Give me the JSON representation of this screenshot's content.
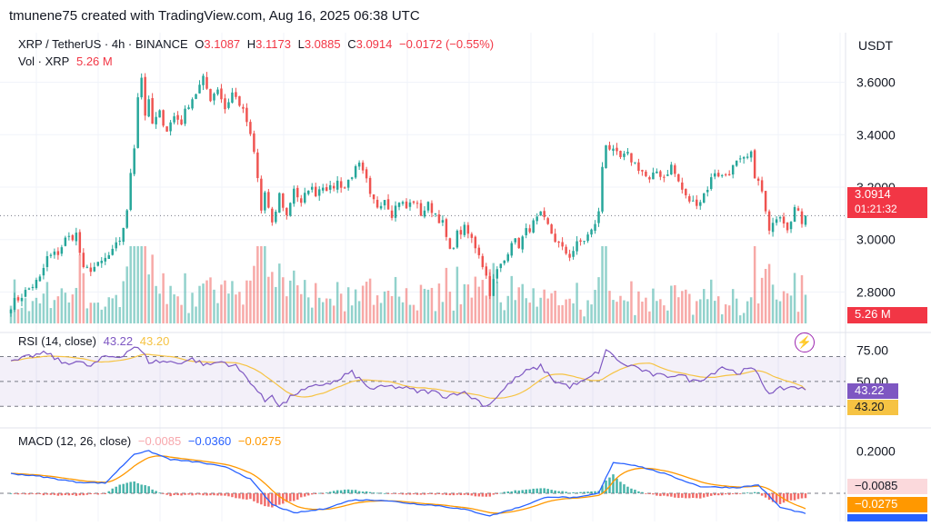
{
  "header": {
    "text": "tmunene75 created with TradingView.com, Aug 16, 2025 06:38 UTC"
  },
  "legend": {
    "symbol": "XRP / TetherUS · 4h · BINANCE",
    "o_label": "O",
    "o": "3.1087",
    "h_label": "H",
    "h": "3.1173",
    "l_label": "L",
    "l": "3.0885",
    "c_label": "C",
    "c": "3.0914",
    "change": "−0.0172 (−0.55%)",
    "vol_label": "Vol · XRP",
    "vol": "5.26 M"
  },
  "price_axis": {
    "unit": "USDT",
    "ticks": [
      "3.6000",
      "3.4000",
      "3.2000",
      "3.0000",
      "2.8000"
    ],
    "last_price": "3.0914",
    "countdown": "01:21:32",
    "volume_badge": "5.26 M"
  },
  "rsi": {
    "label": "RSI (14, close)",
    "value": "43.22",
    "ma": "43.20",
    "ticks": [
      "75.00",
      "50.00"
    ],
    "badge_rsi": "43.22",
    "badge_ma": "43.20"
  },
  "macd": {
    "label": "MACD (12, 26, close)",
    "hist": "−0.0085",
    "macd": "−0.0360",
    "signal": "−0.0275",
    "ticks": [
      "0.2000"
    ],
    "badge_hist": "−0.0085",
    "badge_signal": "−0.0275"
  },
  "colors": {
    "up": "#26a69a",
    "down": "#ef5350",
    "rsi": "#7e57c2",
    "rsi_ma": "#f6c343",
    "macd": "#2962ff",
    "signal": "#ff9800",
    "hist_up": "#26a69a",
    "hist_down": "#ef5350"
  },
  "chart_data": {
    "type": "candlestick",
    "title": "XRP / TetherUS · 4h · BINANCE",
    "ylabel": "USDT",
    "ylim": [
      2.68,
      3.72
    ],
    "anchors": [
      [
        0,
        2.75
      ],
      [
        4,
        2.8
      ],
      [
        8,
        2.85
      ],
      [
        10,
        2.93
      ],
      [
        13,
        2.95
      ],
      [
        15,
        3.0
      ],
      [
        18,
        3.02
      ],
      [
        20,
        2.88
      ],
      [
        24,
        2.9
      ],
      [
        28,
        2.95
      ],
      [
        30,
        3.0
      ],
      [
        31,
        3.05
      ],
      [
        32,
        3.1
      ],
      [
        33,
        3.26
      ],
      [
        34,
        3.36
      ],
      [
        35,
        3.55
      ],
      [
        36,
        3.62
      ],
      [
        37,
        3.48
      ],
      [
        38,
        3.52
      ],
      [
        39,
        3.44
      ],
      [
        41,
        3.48
      ],
      [
        43,
        3.42
      ],
      [
        45,
        3.47
      ],
      [
        47,
        3.45
      ],
      [
        49,
        3.52
      ],
      [
        51,
        3.56
      ],
      [
        53,
        3.61
      ],
      [
        55,
        3.54
      ],
      [
        57,
        3.58
      ],
      [
        59,
        3.5
      ],
      [
        61,
        3.56
      ],
      [
        63,
        3.52
      ],
      [
        65,
        3.45
      ],
      [
        67,
        3.33
      ],
      [
        68,
        3.23
      ],
      [
        69,
        3.11
      ],
      [
        70,
        3.18
      ],
      [
        72,
        3.05
      ],
      [
        74,
        3.17
      ],
      [
        76,
        3.09
      ],
      [
        78,
        3.2
      ],
      [
        80,
        3.13
      ],
      [
        82,
        3.2
      ],
      [
        84,
        3.18
      ],
      [
        86,
        3.21
      ],
      [
        88,
        3.19
      ],
      [
        90,
        3.22
      ],
      [
        92,
        3.2
      ],
      [
        94,
        3.25
      ],
      [
        96,
        3.28
      ],
      [
        98,
        3.22
      ],
      [
        99,
        3.16
      ],
      [
        101,
        3.13
      ],
      [
        103,
        3.16
      ],
      [
        105,
        3.1
      ],
      [
        107,
        3.15
      ],
      [
        109,
        3.12
      ],
      [
        111,
        3.15
      ],
      [
        113,
        3.1
      ],
      [
        115,
        3.13
      ],
      [
        117,
        3.1
      ],
      [
        119,
        3.06
      ],
      [
        121,
        2.95
      ],
      [
        123,
        3.02
      ],
      [
        125,
        3.04
      ],
      [
        127,
        3.0
      ],
      [
        129,
        2.95
      ],
      [
        131,
        2.86
      ],
      [
        132,
        2.8
      ],
      [
        134,
        2.88
      ],
      [
        136,
        2.92
      ],
      [
        138,
        3.0
      ],
      [
        140,
        2.98
      ],
      [
        142,
        3.03
      ],
      [
        144,
        3.06
      ],
      [
        146,
        3.09
      ],
      [
        148,
        3.05
      ],
      [
        150,
        3.0
      ],
      [
        152,
        2.96
      ],
      [
        154,
        2.94
      ],
      [
        156,
        2.98
      ],
      [
        158,
        3.0
      ],
      [
        160,
        3.03
      ],
      [
        162,
        3.1
      ],
      [
        163,
        3.28
      ],
      [
        164,
        3.37
      ],
      [
        166,
        3.33
      ],
      [
        168,
        3.31
      ],
      [
        170,
        3.32
      ],
      [
        172,
        3.29
      ],
      [
        174,
        3.26
      ],
      [
        176,
        3.22
      ],
      [
        178,
        3.26
      ],
      [
        180,
        3.24
      ],
      [
        182,
        3.28
      ],
      [
        184,
        3.22
      ],
      [
        186,
        3.16
      ],
      [
        188,
        3.14
      ],
      [
        190,
        3.15
      ],
      [
        192,
        3.2
      ],
      [
        194,
        3.26
      ],
      [
        196,
        3.24
      ],
      [
        198,
        3.26
      ],
      [
        200,
        3.29
      ],
      [
        202,
        3.3
      ],
      [
        204,
        3.32
      ],
      [
        205,
        3.25
      ],
      [
        207,
        3.18
      ],
      [
        208,
        3.1
      ],
      [
        209,
        3.02
      ],
      [
        210,
        3.08
      ],
      [
        212,
        3.1
      ],
      [
        214,
        3.05
      ],
      [
        216,
        3.12
      ],
      [
        218,
        3.07
      ],
      [
        219,
        3.0914
      ]
    ],
    "last_price": 3.0914,
    "rsi_ylim": [
      20,
      82
    ],
    "rsi_levels": [
      70,
      50,
      30
    ],
    "rsi_anchors": [
      [
        0,
        65
      ],
      [
        5,
        70
      ],
      [
        10,
        73
      ],
      [
        14,
        65
      ],
      [
        18,
        66
      ],
      [
        22,
        62
      ],
      [
        26,
        70
      ],
      [
        30,
        70
      ],
      [
        34,
        78
      ],
      [
        36,
        74
      ],
      [
        38,
        66
      ],
      [
        42,
        66
      ],
      [
        46,
        65
      ],
      [
        50,
        68
      ],
      [
        54,
        63
      ],
      [
        58,
        66
      ],
      [
        62,
        62
      ],
      [
        66,
        50
      ],
      [
        68,
        42
      ],
      [
        70,
        34
      ],
      [
        72,
        40
      ],
      [
        74,
        30
      ],
      [
        76,
        34
      ],
      [
        78,
        40
      ],
      [
        82,
        44
      ],
      [
        86,
        48
      ],
      [
        90,
        50
      ],
      [
        92,
        55
      ],
      [
        94,
        57
      ],
      [
        96,
        52
      ],
      [
        98,
        46
      ],
      [
        100,
        44
      ],
      [
        104,
        46
      ],
      [
        108,
        45
      ],
      [
        112,
        42
      ],
      [
        116,
        42
      ],
      [
        120,
        38
      ],
      [
        124,
        42
      ],
      [
        128,
        36
      ],
      [
        131,
        30
      ],
      [
        134,
        38
      ],
      [
        138,
        50
      ],
      [
        142,
        58
      ],
      [
        146,
        62
      ],
      [
        150,
        50
      ],
      [
        154,
        46
      ],
      [
        158,
        50
      ],
      [
        162,
        58
      ],
      [
        164,
        74
      ],
      [
        166,
        72
      ],
      [
        168,
        64
      ],
      [
        172,
        62
      ],
      [
        176,
        56
      ],
      [
        180,
        54
      ],
      [
        184,
        56
      ],
      [
        188,
        50
      ],
      [
        192,
        54
      ],
      [
        196,
        62
      ],
      [
        200,
        57
      ],
      [
        204,
        60
      ],
      [
        206,
        56
      ],
      [
        208,
        44
      ],
      [
        210,
        40
      ],
      [
        212,
        44
      ],
      [
        216,
        46
      ],
      [
        219,
        43.22
      ]
    ],
    "rsi_ma_last": 43.2,
    "macd_ylim": [
      -0.05,
      0.1
    ],
    "macd_anchors": [
      [
        0,
        0.035
      ],
      [
        8,
        0.03
      ],
      [
        18,
        0.02
      ],
      [
        26,
        0.018
      ],
      [
        34,
        0.07
      ],
      [
        38,
        0.075
      ],
      [
        44,
        0.06
      ],
      [
        52,
        0.055
      ],
      [
        60,
        0.045
      ],
      [
        66,
        0.025
      ],
      [
        72,
        -0.02
      ],
      [
        78,
        -0.035
      ],
      [
        86,
        -0.028
      ],
      [
        94,
        -0.012
      ],
      [
        102,
        -0.012
      ],
      [
        110,
        -0.018
      ],
      [
        118,
        -0.022
      ],
      [
        126,
        -0.03
      ],
      [
        132,
        -0.04
      ],
      [
        140,
        -0.025
      ],
      [
        148,
        -0.006
      ],
      [
        156,
        -0.008
      ],
      [
        162,
        0.0
      ],
      [
        166,
        0.055
      ],
      [
        172,
        0.05
      ],
      [
        180,
        0.035
      ],
      [
        190,
        0.012
      ],
      [
        200,
        0.01
      ],
      [
        206,
        0.015
      ],
      [
        212,
        -0.025
      ],
      [
        219,
        -0.036
      ]
    ],
    "macd_last": -0.036,
    "signal_last": -0.0275,
    "hist_last": -0.0085,
    "volume_last": 5.26
  }
}
